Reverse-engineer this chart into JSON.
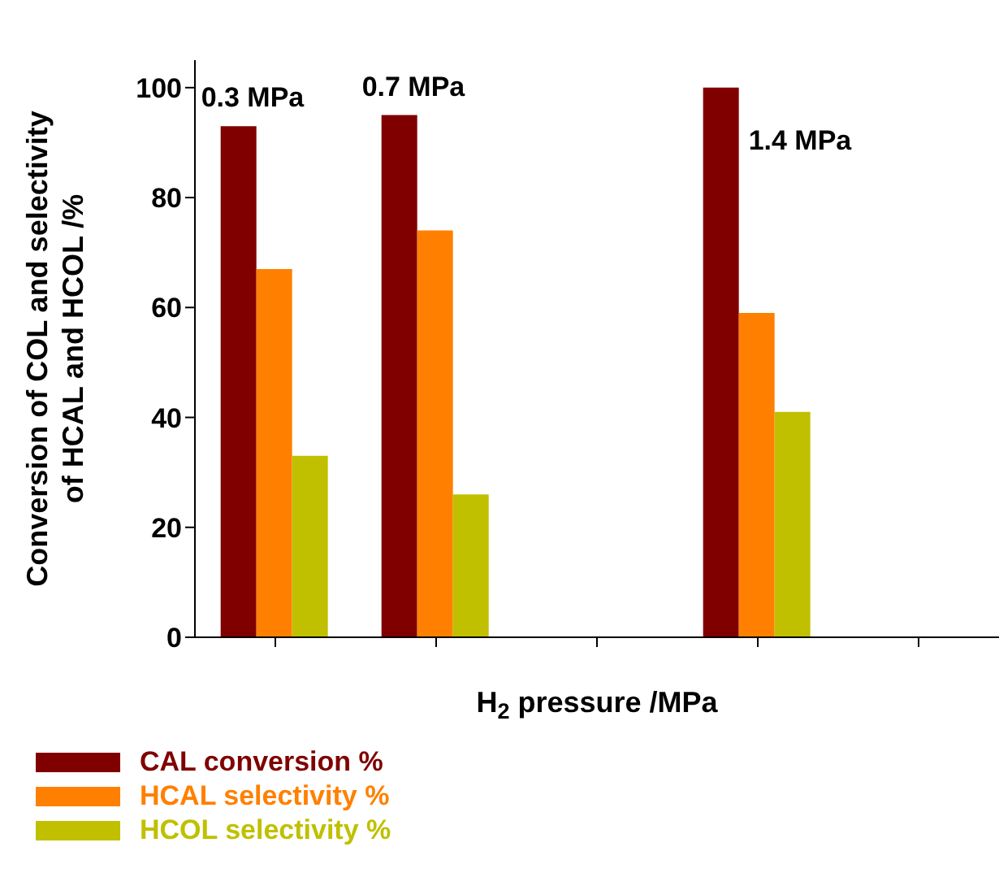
{
  "chart_data": {
    "type": "bar",
    "xlabel": "H$_{2}$ pressure /MPa",
    "ylabel": "Conversion of COL and selectivity\nof HCAL and HCOL /%",
    "categories": [
      null,
      null,
      null,
      null,
      null
    ],
    "series": [
      {
        "name": "CAL conversion %",
        "color": "#800000",
        "values": [
          93,
          95,
          null,
          100,
          null
        ]
      },
      {
        "name": "HCAL selectivity %",
        "color": "#ff8000",
        "values": [
          67,
          74,
          null,
          59,
          null
        ]
      },
      {
        "name": "HCOL selectivity %",
        "color": "#c0c000",
        "values": [
          33,
          26,
          null,
          41,
          null
        ]
      }
    ],
    "annotations": [
      "0.3 MPa",
      "0.7 MPa",
      "1.4 MPa"
    ],
    "ylim": [
      0,
      105
    ],
    "yticks": [
      0,
      20,
      40,
      60,
      80,
      100
    ],
    "grid": false,
    "legend": "bottom left"
  }
}
